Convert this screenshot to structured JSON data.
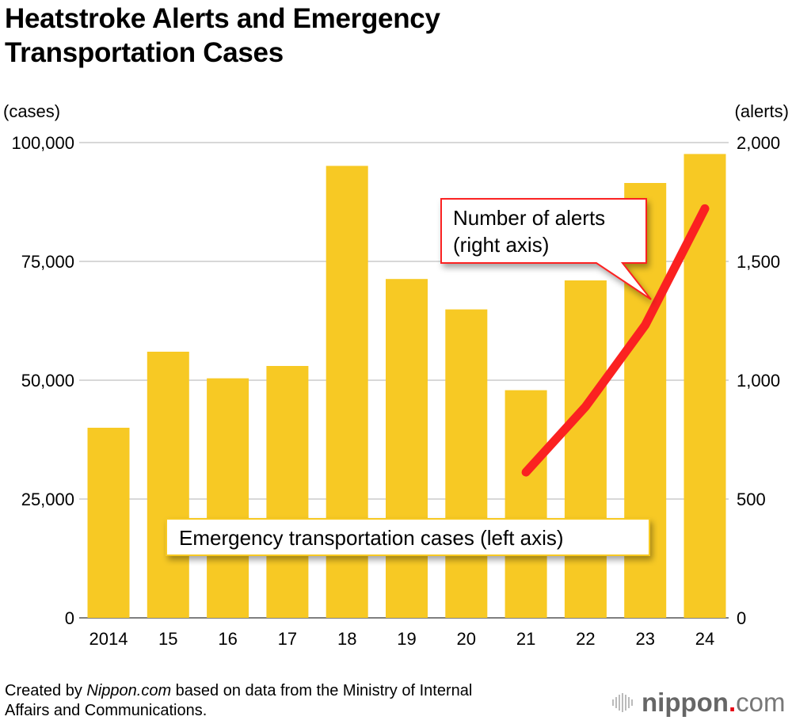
{
  "title_line1": "Heatstroke Alerts and Emergency",
  "title_line2": "Transportation Cases",
  "footer": {
    "prefix": "Created by ",
    "source_italic": "Nippon.com",
    "suffix": " based on data from the Ministry of Internal",
    "line2": "Affairs and Communications."
  },
  "logo": {
    "name": "nippon",
    "dot": ".",
    "tld": "com",
    "dot_color": "#e60012"
  },
  "chart_data": {
    "type": "bar+line",
    "categories": [
      "2014",
      "15",
      "16",
      "17",
      "18",
      "19",
      "20",
      "21",
      "22",
      "23",
      "24"
    ],
    "left_axis": {
      "unit_label": "(cases)",
      "ylim": [
        0,
        100000
      ],
      "ticks": [
        "0",
        "25,000",
        "50,000",
        "75,000",
        "100,000"
      ]
    },
    "right_axis": {
      "unit_label": "(alerts)",
      "ylim": [
        0,
        2000
      ],
      "ticks": [
        "0",
        "500",
        "1,000",
        "1,500",
        "2,000"
      ]
    },
    "grid": true,
    "series": [
      {
        "name": "Emergency transportation cases (left axis)",
        "type": "bar",
        "axis": "left",
        "color": "#f7c924",
        "values": [
          40000,
          56000,
          50400,
          53000,
          95100,
          71300,
          64900,
          47900,
          71000,
          91500,
          97600
        ]
      },
      {
        "name_line1": "Number of alerts",
        "name_line2": "(right axis)",
        "type": "line",
        "axis": "right",
        "color": "#fb2121",
        "values": [
          null,
          null,
          null,
          null,
          null,
          null,
          null,
          613,
          889,
          1232,
          1722
        ]
      }
    ]
  }
}
